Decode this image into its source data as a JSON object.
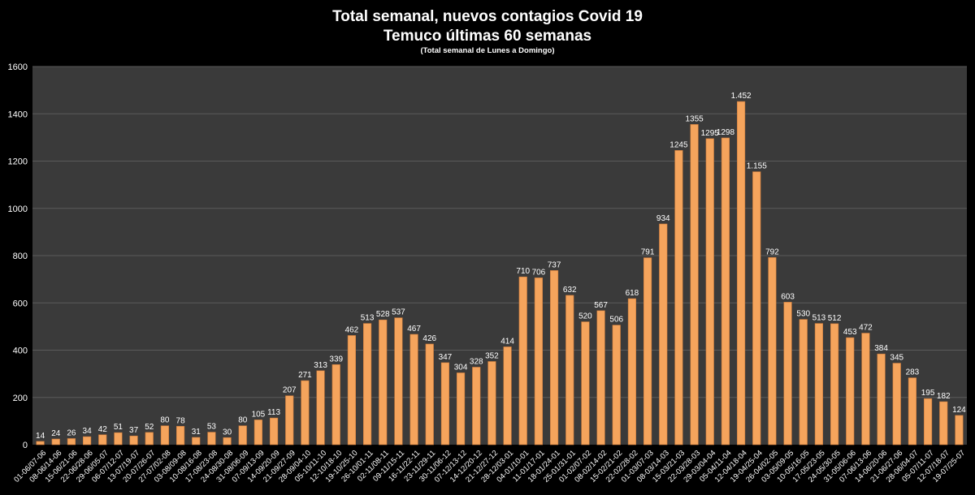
{
  "chart_data": {
    "type": "bar",
    "title": "Total semanal, nuevos contagios Covid 19",
    "subtitle": "Temuco últimas 60 semanas",
    "note": "(Total semanal de Lunes a Domingo)",
    "ylim": [
      0,
      1600
    ],
    "yticks": [
      0,
      200,
      400,
      600,
      800,
      1000,
      1200,
      1400,
      1600
    ],
    "grid": true,
    "colors": {
      "bar": "#f5a45c",
      "bar_edge": "#c9793a",
      "plot_bg": "#3a3a3a",
      "page_bg": "#000000"
    },
    "categories": [
      "01-06/07-06",
      "08-06/14-06",
      "15-06/21-06",
      "22-06/28-06",
      "29-06/05-07",
      "06-07/12-07",
      "13-07/19-07",
      "20-07/26-07",
      "27-07/02-08",
      "03-08/09-08",
      "10-08/16-08",
      "17-08/23-08",
      "24-08/30-08",
      "31-08/06-09",
      "07-09/13-09",
      "14-09/20-09",
      "21-09/27-09",
      "28-09/04-10",
      "05-10/11-10",
      "12-10/18-10",
      "19-10/25-10",
      "26-10/01-11",
      "02-11/08-11",
      "09-11/15-11",
      "16-11/22-11",
      "23-11/29-11",
      "30-11/06-12",
      "07-12/13-12",
      "14-12/20-12",
      "21-12/27-12",
      "28-12/03-01",
      "04-01/10-01",
      "11-01/17-01",
      "18-01/24-01",
      "25-01/31-01",
      "01-02/07-02",
      "08-02/14-02",
      "15-02/21-02",
      "22-02/28-02",
      "01-03/07-03",
      "08-03/14-03",
      "15-03/21-03",
      "22-03/28-03",
      "29-03/04-04",
      "05-04/11-04",
      "12-04/18-04",
      "19-04/25-04",
      "26-04/02-05",
      "03-05/09-05",
      "10-05/16-05",
      "17-05/23-05",
      "24-05/30-05",
      "31-05/06-06",
      "07-06/13-06",
      "14-06/20-06",
      "21-06/27-06",
      "28-06/04-07",
      "05-07/11-07",
      "12-07/18-07",
      "19-07/25-07"
    ],
    "values": [
      14,
      24,
      26,
      34,
      42,
      51,
      37,
      52,
      80,
      78,
      31,
      53,
      30,
      80,
      105,
      113,
      207,
      271,
      313,
      339,
      462,
      513,
      528,
      537,
      467,
      426,
      347,
      304,
      328,
      352,
      414,
      710,
      706,
      737,
      632,
      520,
      567,
      506,
      618,
      791,
      934,
      1245,
      1355,
      1295,
      1298,
      1452,
      1155,
      792,
      603,
      530,
      513,
      512,
      453,
      472,
      384,
      345,
      283,
      195,
      182,
      124
    ],
    "data_labels": [
      "14",
      "24",
      "26",
      "34",
      "42",
      "51",
      "37",
      "52",
      "80",
      "78",
      "31",
      "53",
      "30",
      "80",
      "105",
      "113",
      "207",
      "271",
      "313",
      "339",
      "462",
      "513",
      "528",
      "537",
      "467",
      "426",
      "347",
      "304",
      "328",
      "352",
      "414",
      "710",
      "706",
      "737",
      "632",
      "520",
      "567",
      "506",
      "618",
      "791",
      "934",
      "1245",
      "1355",
      "1295",
      "1298",
      "1.452",
      "1.155",
      "792",
      "603",
      "530",
      "513",
      "512",
      "453",
      "472",
      "384",
      "345",
      "283",
      "195",
      "182",
      "124"
    ]
  }
}
